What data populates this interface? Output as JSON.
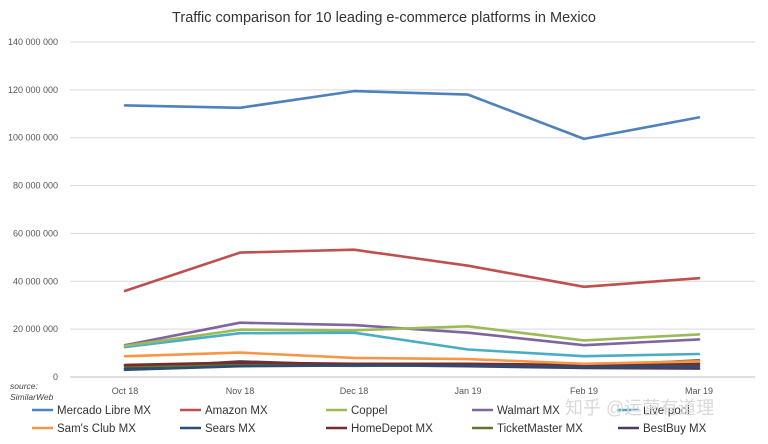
{
  "chart_data": {
    "type": "line",
    "title": "Traffic comparison for 10 leading e-commerce platforms in Mexico",
    "source_label": "source:",
    "source_name": "SimilarWeb",
    "categories": [
      "Oct 18",
      "Nov 18",
      "Dec 18",
      "Jan 19",
      "Feb 19",
      "Mar 19"
    ],
    "y_ticks": [
      0,
      20000000,
      40000000,
      60000000,
      80000000,
      100000000,
      120000000,
      140000000
    ],
    "y_tick_labels": [
      "0",
      "20 000 000",
      "40 000 000",
      "60 000 000",
      "80 000 000",
      "100 000 000",
      "120 000 000",
      "140 000 000"
    ],
    "ylim": [
      0,
      140000000
    ],
    "grid": true,
    "legend_position": "bottom",
    "series": [
      {
        "name": "Mercado Libre MX",
        "color": "#4f81bd",
        "values": [
          113500000,
          112500000,
          119500000,
          118000000,
          99500000,
          108500000
        ]
      },
      {
        "name": "Amazon MX",
        "color": "#c0504d",
        "values": [
          36000000,
          52000000,
          53200000,
          46500000,
          37700000,
          41300000
        ]
      },
      {
        "name": "Coppel",
        "color": "#9bbb59",
        "values": [
          13000000,
          19800000,
          19500000,
          21200000,
          15300000,
          17800000
        ]
      },
      {
        "name": "Walmart MX",
        "color": "#8064a2",
        "values": [
          13300000,
          22700000,
          21700000,
          18500000,
          13300000,
          15700000
        ]
      },
      {
        "name": "Liverpool",
        "color": "#4bacc6",
        "values": [
          12500000,
          18300000,
          18500000,
          11500000,
          8700000,
          9600000
        ]
      },
      {
        "name": "Sam's Club MX",
        "color": "#f79646",
        "values": [
          8700000,
          10200000,
          8000000,
          7500000,
          5500000,
          6500000
        ]
      },
      {
        "name": "Sears MX",
        "color": "#2c4d75",
        "values": [
          3000000,
          4500000,
          4800000,
          4800000,
          4200000,
          4500000
        ]
      },
      {
        "name": "HomeDepot MX",
        "color": "#772c2a",
        "values": [
          5000000,
          6000000,
          5500000,
          5500000,
          5000000,
          5500000
        ]
      },
      {
        "name": "TicketMaster MX",
        "color": "#5f7530",
        "values": [
          4500000,
          5000000,
          4700000,
          5000000,
          4500000,
          7000000
        ]
      },
      {
        "name": "BestBuy MX",
        "color": "#4d3b62",
        "values": [
          3500000,
          6500000,
          5000000,
          4500000,
          3800000,
          3500000
        ]
      }
    ]
  },
  "watermark": "知乎 @运营有道理"
}
